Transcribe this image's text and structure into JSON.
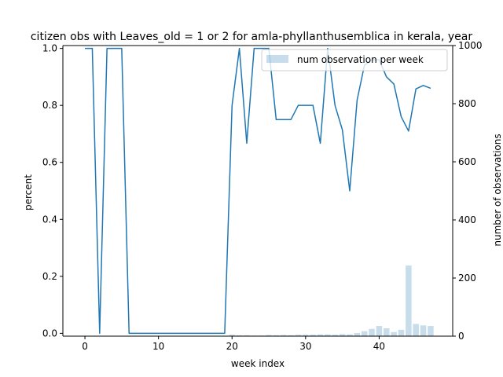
{
  "chart_data": {
    "type": "line+bar",
    "title": "citizen obs with Leaves_old = 1 or 2 for amla-phyllanthusemblica in kerala, year",
    "xlabel": "week index",
    "ylabel_left": "percent",
    "ylabel_right": "number of observations",
    "xlim": [
      -3,
      50
    ],
    "ylim_left": [
      -0.01,
      1.01
    ],
    "ylim_right": [
      0,
      1000
    ],
    "x_ticks": [
      0,
      10,
      20,
      30,
      40
    ],
    "y_ticks_left": [
      0.0,
      0.2,
      0.4,
      0.6,
      0.8,
      1.0
    ],
    "y_ticks_right": [
      0,
      200,
      400,
      600,
      800,
      1000
    ],
    "legend": {
      "placement": "top-right",
      "entries": [
        "num observation per week"
      ]
    },
    "grid": false,
    "line_series": {
      "color": "#1f77b4",
      "x": [
        0,
        1,
        2,
        3,
        4,
        5,
        6,
        7,
        8,
        9,
        10,
        11,
        12,
        13,
        14,
        15,
        16,
        17,
        18,
        19,
        20,
        21,
        22,
        23,
        24,
        25,
        26,
        27,
        28,
        29,
        30,
        31,
        32,
        33,
        34,
        35,
        36,
        37,
        38,
        39,
        40,
        41,
        42,
        43,
        44,
        45,
        46,
        47
      ],
      "values": [
        1.0,
        1.0,
        0.0,
        1.0,
        1.0,
        1.0,
        0.0,
        0.0,
        0.0,
        0.0,
        0.0,
        0.0,
        0.0,
        0.0,
        0.0,
        0.0,
        0.0,
        0.0,
        0.0,
        0.0,
        0.8,
        1.0,
        0.667,
        1.0,
        1.0,
        1.0,
        0.75,
        0.75,
        0.75,
        0.8,
        0.8,
        0.8,
        0.667,
        1.0,
        0.8,
        0.714,
        0.5,
        0.818,
        0.941,
        0.96,
        0.96,
        0.9,
        0.875,
        0.76,
        0.71,
        0.858,
        0.87,
        0.86
      ]
    },
    "bar_series": {
      "name": "num observation per week",
      "color": "#1f77b4",
      "opacity": 0.25,
      "x": [
        0,
        1,
        2,
        3,
        4,
        5,
        6,
        7,
        8,
        9,
        10,
        11,
        12,
        13,
        14,
        15,
        16,
        17,
        18,
        19,
        20,
        21,
        22,
        23,
        24,
        25,
        26,
        27,
        28,
        29,
        30,
        31,
        32,
        33,
        34,
        35,
        36,
        37,
        38,
        39,
        40,
        41,
        42,
        43,
        44,
        45,
        46,
        47
      ],
      "values": [
        1,
        1,
        1,
        1,
        1,
        1,
        1,
        1,
        1,
        1,
        1,
        1,
        1,
        1,
        1,
        1,
        1,
        1,
        1,
        1,
        5,
        3,
        3,
        2,
        2,
        4,
        3,
        4,
        3,
        5,
        5,
        5,
        6,
        6,
        5,
        7,
        6,
        11,
        17,
        25,
        35,
        27,
        14,
        22,
        243,
        42,
        37,
        35
      ]
    }
  }
}
